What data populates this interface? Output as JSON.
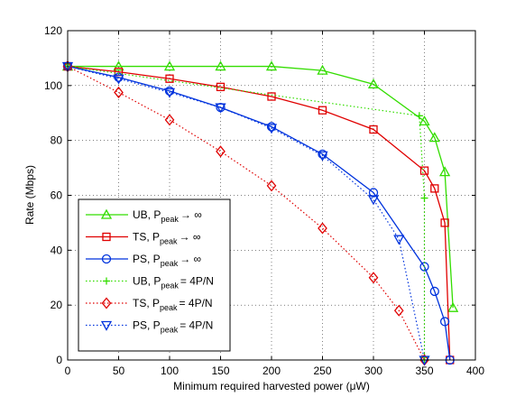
{
  "chart_data": {
    "type": "line",
    "title": "",
    "xlabel": "Minimum required harvested power (μW)",
    "ylabel": "Rate (Mbps)",
    "xlim": [
      0,
      400
    ],
    "ylim": [
      0,
      120
    ],
    "xticks": [
      "0",
      "50",
      "100",
      "150",
      "200",
      "250",
      "300",
      "350",
      "400"
    ],
    "yticks": [
      "0",
      "20",
      "40",
      "60",
      "80",
      "100",
      "120"
    ],
    "grid": true,
    "legend_position": "bottom-left",
    "series": [
      {
        "name": "UB, P_peak → ∞",
        "legend": {
          "main": "UB, P",
          "sub": "peak",
          "tail": "→ ∞"
        },
        "color": "#33dd00",
        "linestyle": "solid",
        "marker": "triangle-up",
        "x": [
          0,
          50,
          100,
          150,
          200,
          250,
          300,
          350,
          360,
          370,
          378
        ],
        "y": [
          107,
          107,
          107,
          107,
          107,
          105.5,
          100.5,
          87,
          81,
          68.5,
          19
        ]
      },
      {
        "name": "TS, P_peak → ∞",
        "legend": {
          "main": "TS, P",
          "sub": "peak",
          "tail": "→ ∞"
        },
        "color": "#e00000",
        "linestyle": "solid",
        "marker": "square",
        "x": [
          0,
          50,
          100,
          150,
          200,
          250,
          300,
          350,
          360,
          370,
          375
        ],
        "y": [
          107,
          105,
          102.5,
          99.5,
          96,
          91,
          84,
          69,
          62.5,
          50,
          0
        ]
      },
      {
        "name": "PS, P_peak → ∞",
        "legend": {
          "main": "PS, P",
          "sub": "peak",
          "tail": "→ ∞"
        },
        "color": "#0033dd",
        "linestyle": "solid",
        "marker": "circle",
        "x": [
          0,
          50,
          100,
          150,
          200,
          250,
          300,
          350,
          360,
          370,
          375
        ],
        "y": [
          107,
          103,
          98,
          92,
          85,
          75,
          61,
          34,
          25,
          14,
          0
        ]
      },
      {
        "name": "UB, P_peak = 4P/N",
        "legend": {
          "main": "UB, P",
          "sub": "peak",
          "tail": "= 4P/N"
        },
        "color": "#33dd00",
        "linestyle": "dotted",
        "marker": "plus",
        "x": [
          0,
          345,
          350,
          350,
          350
        ],
        "y": [
          107,
          89,
          59,
          1,
          0
        ]
      },
      {
        "name": "TS, P_peak = 4P/N",
        "legend": {
          "main": "TS, P",
          "sub": "peak",
          "tail": "= 4P/N"
        },
        "color": "#e00000",
        "linestyle": "dotted",
        "marker": "diamond",
        "x": [
          0,
          50,
          100,
          150,
          200,
          250,
          300,
          325,
          350
        ],
        "y": [
          107,
          97.5,
          87.5,
          76,
          63.5,
          48,
          30,
          18,
          0
        ]
      },
      {
        "name": "PS, P_peak = 4P/N",
        "legend": {
          "main": "PS, P",
          "sub": "peak",
          "tail": "= 4P/N"
        },
        "color": "#0033dd",
        "linestyle": "dotted",
        "marker": "triangle-down",
        "x": [
          0,
          50,
          100,
          150,
          200,
          250,
          300,
          325,
          350
        ],
        "y": [
          107,
          102.5,
          97.5,
          92,
          84.5,
          74.5,
          58.5,
          44,
          0
        ]
      }
    ]
  }
}
